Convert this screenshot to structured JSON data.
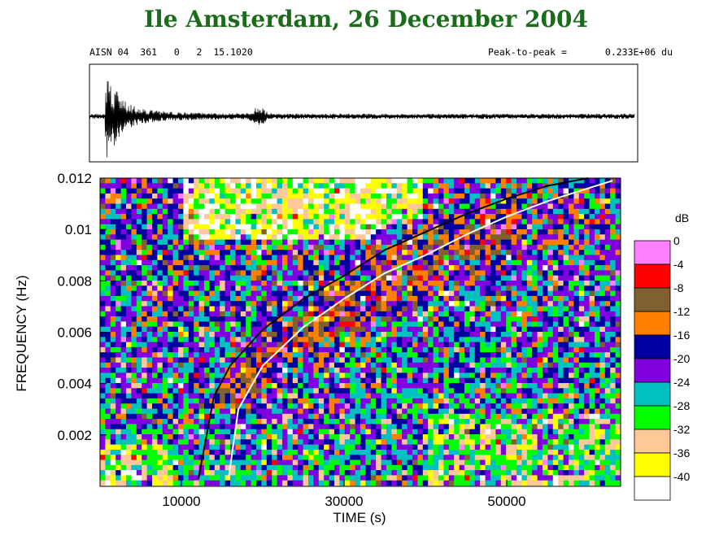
{
  "header": {
    "title": "Ile Amsterdam, 26 December 2004",
    "station_info": "AISN 04  361   0   2  15.1020",
    "peak_label": "Peak-to-peak =",
    "peak_value": "0.233E+06 du"
  },
  "chart_data": {
    "type": "heatmap",
    "xlabel": "TIME (s)",
    "ylabel": "FREQUENCY (Hz)",
    "xlim": [
      0,
      64000
    ],
    "ylim": [
      0,
      0.012
    ],
    "x_ticks": [
      10000,
      30000,
      50000
    ],
    "x_tick_labels": [
      "10000",
      "30000",
      "50000"
    ],
    "y_ticks": [
      0.002,
      0.004,
      0.006,
      0.008,
      0.01,
      0.012
    ],
    "y_tick_labels": [
      "0.002",
      "0.004",
      "0.006",
      "0.008",
      "0.01",
      "0.012"
    ],
    "colorbar": {
      "unit": "dB",
      "levels": [
        "0",
        "-4",
        "-8",
        "-12",
        "-16",
        "-20",
        "-24",
        "-28",
        "-32",
        "-36",
        "-40"
      ],
      "colors": [
        "#ff80ff",
        "#ff0000",
        "#806030",
        "#ff8000",
        "#0000a0",
        "#8000e0",
        "#00c0c0",
        "#00ff00",
        "#ffc898",
        "#ffff00",
        "#ffffff"
      ]
    },
    "dispersion_curves": [
      {
        "color": "#000000",
        "points": [
          [
            12100,
            0.0003
          ],
          [
            14000,
            0.0035
          ],
          [
            16000,
            0.0047
          ],
          [
            20000,
            0.0061
          ],
          [
            25000,
            0.0073
          ],
          [
            30000,
            0.0082
          ],
          [
            35000,
            0.0092
          ],
          [
            40000,
            0.0099
          ],
          [
            45000,
            0.0106
          ],
          [
            50000,
            0.0112
          ],
          [
            55000,
            0.0117
          ],
          [
            60000,
            0.012
          ]
        ]
      },
      {
        "color": "#ffffff",
        "points": [
          [
            15800,
            0.0003
          ],
          [
            17000,
            0.003
          ],
          [
            20000,
            0.0047
          ],
          [
            25000,
            0.0062
          ],
          [
            30000,
            0.0073
          ],
          [
            35000,
            0.0083
          ],
          [
            40000,
            0.009
          ],
          [
            45000,
            0.0098
          ],
          [
            50000,
            0.0105
          ],
          [
            55000,
            0.0111
          ],
          [
            60000,
            0.0116
          ],
          [
            63000,
            0.0119
          ]
        ]
      }
    ]
  }
}
